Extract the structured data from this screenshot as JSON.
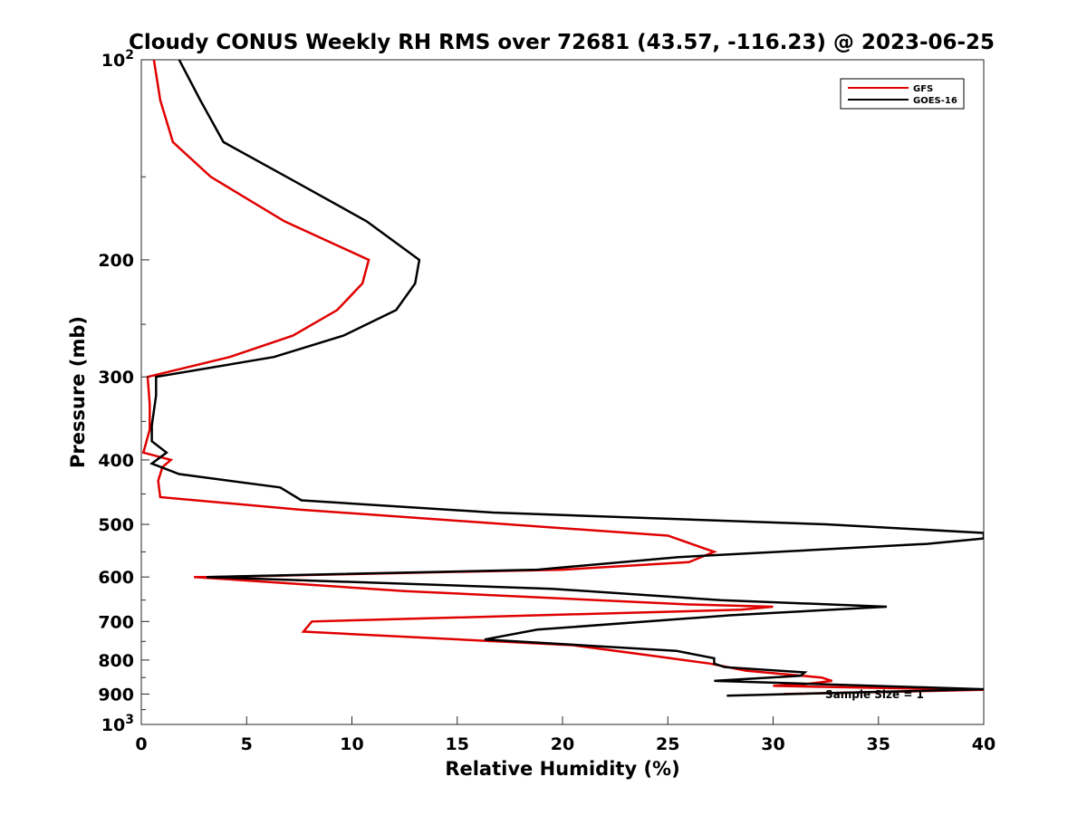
{
  "chart_data": {
    "type": "line",
    "title": "Cloudy CONUS Weekly RH RMS over 72681 (43.57, -116.23) @ 2023-06-25",
    "xlabel": "Relative Humidity (%)",
    "ylabel": "Pressure (mb)",
    "xlim": [
      0,
      40
    ],
    "ylim": [
      100,
      1000
    ],
    "yscale": "log",
    "y_reversed": true,
    "xticks": [
      0,
      5,
      10,
      15,
      20,
      25,
      30,
      35,
      40
    ],
    "yticks": [
      100,
      200,
      300,
      400,
      500,
      600,
      700,
      800,
      900,
      1000
    ],
    "ytick_labels": [
      "10^2",
      "200",
      "300",
      "400",
      "500",
      "600",
      "700",
      "800",
      "900",
      "10^3"
    ],
    "legend_position": "top-right",
    "grid": false,
    "annotation": "Sample Size = 1",
    "series": [
      {
        "name": "GFS",
        "color": "#e00000",
        "x": [
          0.6,
          0.9,
          1.5,
          3.3,
          6.8,
          10.8,
          10.5,
          9.3,
          7.2,
          4.2,
          0.3,
          0.4,
          0.4,
          0.1,
          1.4,
          1.0,
          0.8,
          0.9,
          7.5,
          25.0,
          27.2,
          26.0,
          20.0,
          3.3,
          2.5,
          12.5,
          26.0,
          30.0,
          28.5,
          8.1,
          7.7,
          20.5,
          24.5,
          27.0,
          28.7,
          32.3,
          32.8,
          31.5,
          30.0,
          40.0,
          30.5
        ],
        "y": [
          100,
          115,
          133,
          150,
          175,
          200,
          217,
          238,
          260,
          280,
          300,
          330,
          360,
          390,
          400,
          410,
          430,
          455,
          475,
          520,
          550,
          570,
          585,
          600,
          600,
          630,
          660,
          665,
          672,
          700,
          725,
          760,
          790,
          810,
          830,
          850,
          860,
          870,
          875,
          887,
          900
        ]
      },
      {
        "name": "GOES-16",
        "color": "#000000",
        "x": [
          1.8,
          2.8,
          3.9,
          6.9,
          10.7,
          13.2,
          13.0,
          12.1,
          9.6,
          6.3,
          0.7,
          0.7,
          0.5,
          0.5,
          1.2,
          0.5,
          1.8,
          6.6,
          7.6,
          16.7,
          32.5,
          40.0,
          40.0,
          37.3,
          25.5,
          18.8,
          3.1,
          19.5,
          27.5,
          35.4,
          28.0,
          18.8,
          16.3,
          25.4,
          27.2,
          27.2,
          27.7,
          31.5,
          31.3,
          27.2,
          40.0,
          27.8
        ],
        "y": [
          100,
          115,
          133,
          150,
          175,
          200,
          217,
          238,
          260,
          280,
          300,
          320,
          355,
          375,
          390,
          405,
          420,
          440,
          460,
          480,
          500,
          515,
          525,
          535,
          560,
          585,
          600,
          625,
          650,
          665,
          685,
          720,
          745,
          775,
          795,
          810,
          820,
          835,
          845,
          860,
          885,
          905
        ]
      }
    ]
  }
}
